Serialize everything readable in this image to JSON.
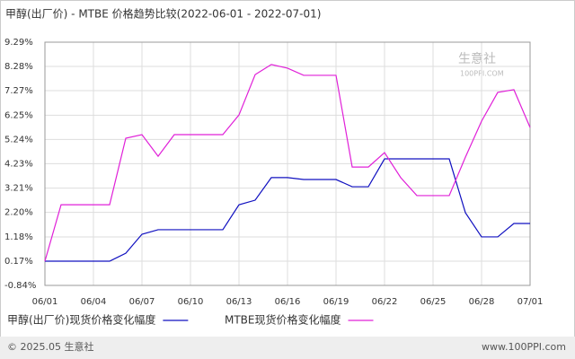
{
  "chart_data": {
    "type": "line",
    "title": "甲醇(出厂价) - MTBE 价格趋势比较(2022-06-01 - 2022-07-01)",
    "watermark": "生意社",
    "watermark_url": "100PPI.COM",
    "footer_left": "© 2025.05 生意社",
    "footer_right": "www.100PPI.com",
    "categories": [
      "06/01",
      null,
      null,
      "06/04",
      null,
      null,
      "06/07",
      null,
      null,
      "06/10",
      null,
      null,
      "06/13",
      null,
      null,
      "06/16",
      null,
      null,
      "06/19",
      null,
      null,
      "06/22",
      null,
      null,
      "06/25",
      null,
      null,
      "06/28",
      null,
      null,
      "07/01"
    ],
    "series": [
      {
        "name": "甲醇(出厂价)现货价格变化幅度",
        "color": "#1010c0",
        "values": [
          0.17,
          0.17,
          0.17,
          0.17,
          0.17,
          0.5,
          1.29,
          1.48,
          1.48,
          1.48,
          1.48,
          1.48,
          2.52,
          2.71,
          3.65,
          3.65,
          3.57,
          3.57,
          3.57,
          3.27,
          3.27,
          4.43,
          4.43,
          4.43,
          4.43,
          4.43,
          2.19,
          1.18,
          1.18,
          1.74,
          1.74
        ]
      },
      {
        "name": "MTBE现货价格变化幅度",
        "color": "#e020d8",
        "values": [
          0.17,
          2.52,
          2.52,
          2.52,
          2.52,
          5.29,
          5.44,
          4.54,
          5.44,
          5.44,
          5.44,
          5.44,
          6.26,
          7.94,
          8.36,
          8.21,
          7.91,
          7.91,
          7.91,
          4.09,
          4.09,
          4.69,
          3.65,
          2.9,
          2.9,
          2.9,
          4.5,
          6.0,
          7.2,
          7.31,
          5.74
        ]
      }
    ],
    "ylim": [
      -0.84,
      9.29
    ],
    "yticks": [
      {
        "value": 9.29,
        "label": "9.29%"
      },
      {
        "value": 8.28,
        "label": "8.28%"
      },
      {
        "value": 7.27,
        "label": "7.27%"
      },
      {
        "value": 6.25,
        "label": "6.25%"
      },
      {
        "value": 5.24,
        "label": "5.24%"
      },
      {
        "value": 4.23,
        "label": "4.23%"
      },
      {
        "value": 3.21,
        "label": "3.21%"
      },
      {
        "value": 2.2,
        "label": "2.20%"
      },
      {
        "value": 1.18,
        "label": "1.18%"
      },
      {
        "value": 0.17,
        "label": "0.17%"
      },
      {
        "value": -0.84,
        "label": "-0.84%"
      }
    ],
    "grid": true
  }
}
